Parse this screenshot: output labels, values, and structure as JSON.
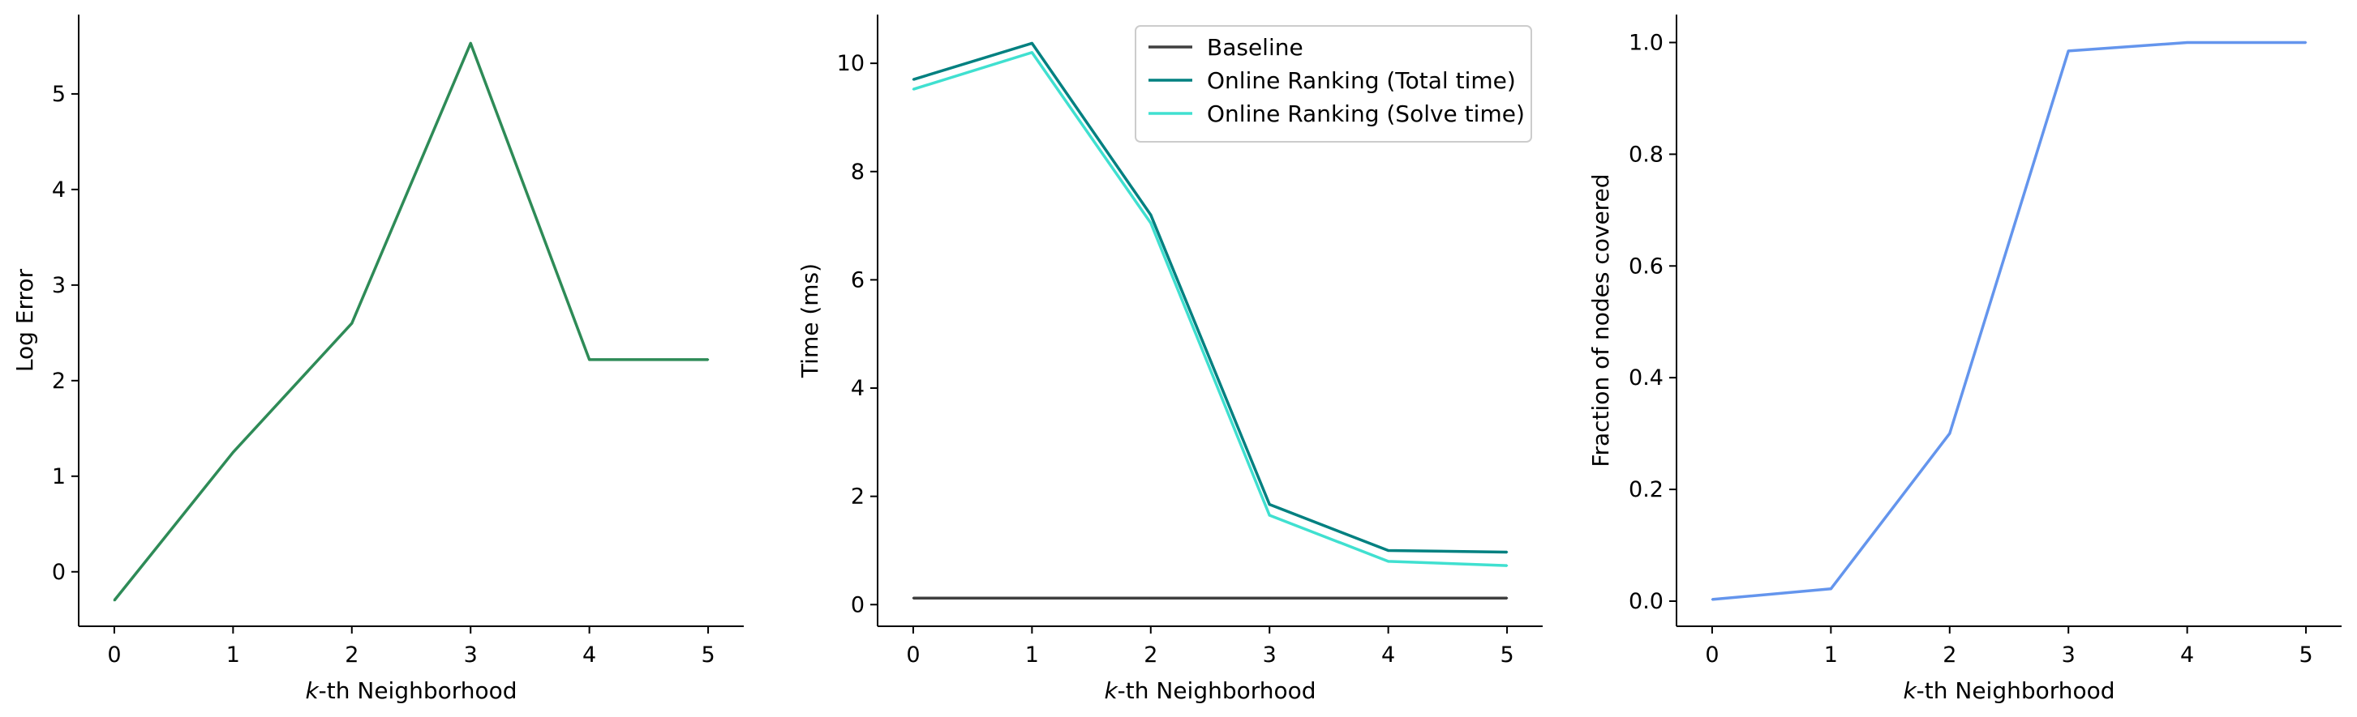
{
  "chart_data": [
    {
      "type": "line",
      "title": "",
      "xlabel_prefix": "k",
      "xlabel_suffix": "-th Neighborhood",
      "ylabel": "Log Error",
      "x": [
        0,
        1,
        2,
        3,
        4,
        5
      ],
      "xlim": [
        -0.3,
        5.3
      ],
      "ylim": [
        -0.57,
        5.83
      ],
      "xticks": [
        0,
        1,
        2,
        3,
        4,
        5
      ],
      "yticks": [
        0,
        1,
        2,
        3,
        4,
        5
      ],
      "ytick_format": "int",
      "grid": false,
      "series": [
        {
          "color": "#2e8b57",
          "values": [
            -0.3,
            1.25,
            2.6,
            5.53,
            2.22,
            2.22
          ]
        }
      ]
    },
    {
      "type": "line",
      "title": "",
      "xlabel_prefix": "k",
      "xlabel_suffix": "-th Neighborhood",
      "ylabel": "Time (ms)",
      "x": [
        0,
        1,
        2,
        3,
        4,
        5
      ],
      "xlim": [
        -0.3,
        5.3
      ],
      "ylim": [
        -0.4,
        10.9
      ],
      "xticks": [
        0,
        1,
        2,
        3,
        4,
        5
      ],
      "yticks": [
        0,
        2,
        4,
        6,
        8,
        10
      ],
      "ytick_format": "int",
      "grid": false,
      "legend_position": "top-right",
      "series": [
        {
          "name": "Baseline",
          "color": "#3f3f3f",
          "values": [
            0.12,
            0.12,
            0.12,
            0.12,
            0.12,
            0.12
          ]
        },
        {
          "name": "Online Ranking (Total time)",
          "color": "#008080",
          "values": [
            9.7,
            10.37,
            7.2,
            1.85,
            1.0,
            0.97
          ]
        },
        {
          "name": "Online Ranking (Solve time)",
          "color": "#40e0d0",
          "values": [
            9.52,
            10.2,
            7.05,
            1.65,
            0.8,
            0.72
          ]
        }
      ]
    },
    {
      "type": "line",
      "title": "",
      "xlabel_prefix": "k",
      "xlabel_suffix": "-th Neighborhood",
      "ylabel": "Fraction of nodes covered",
      "x": [
        0,
        1,
        2,
        3,
        4,
        5
      ],
      "xlim": [
        -0.3,
        5.3
      ],
      "ylim": [
        -0.045,
        1.05
      ],
      "xticks": [
        0,
        1,
        2,
        3,
        4,
        5
      ],
      "yticks": [
        0.0,
        0.2,
        0.4,
        0.6,
        0.8,
        1.0
      ],
      "ytick_format": "one-decimal",
      "grid": false,
      "series": [
        {
          "color": "#6495ed",
          "values": [
            0.003,
            0.022,
            0.3,
            0.985,
            1.0,
            1.0
          ]
        }
      ]
    }
  ]
}
